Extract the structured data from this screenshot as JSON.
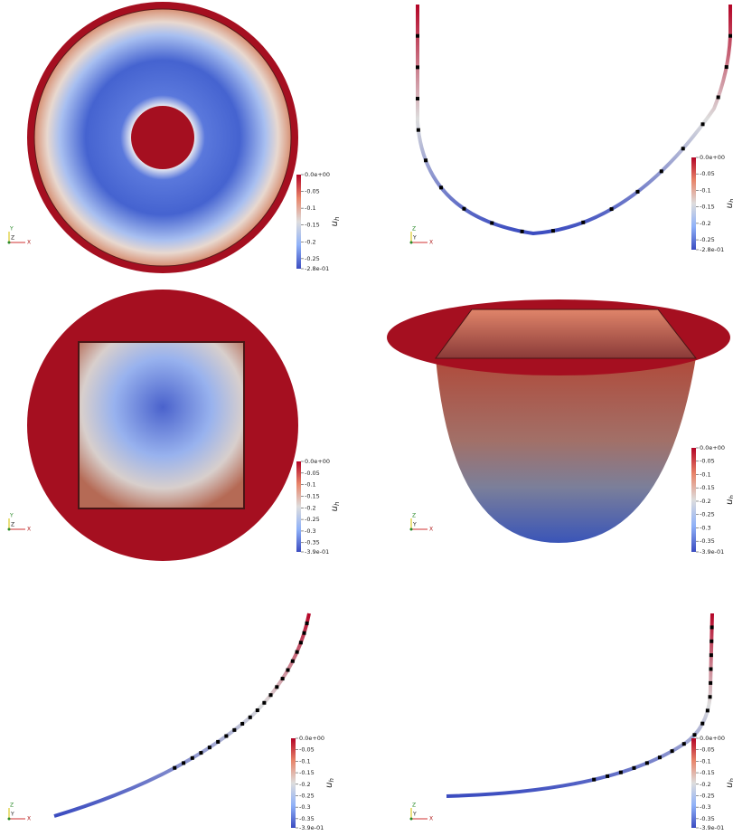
{
  "panels": [
    {
      "colorbar": {
        "labels": [
          "0.0e+00",
          "-0.05",
          "-0.1",
          "-0.15",
          "-0.2",
          "-0.25",
          "-2.8e-01"
        ],
        "title": "u",
        "subscript": "h"
      },
      "axes": [
        "Y",
        "Z",
        "X"
      ]
    },
    {
      "colorbar": {
        "labels": [
          "0.0e+00",
          "-0.05",
          "-0.1",
          "-0.15",
          "-0.2",
          "-0.25",
          "-2.8e-01"
        ],
        "title": "u",
        "subscript": "h"
      },
      "axes": [
        "Z",
        "Y",
        "X"
      ]
    },
    {
      "colorbar": {
        "labels": [
          "0.0e+00",
          "-0.05",
          "-0.1",
          "-0.15",
          "-0.2",
          "-0.25",
          "-0.3",
          "-0.35",
          "-3.9e-01"
        ],
        "title": "u",
        "subscript": "h"
      },
      "axes": [
        "Y",
        "Z",
        "X"
      ]
    },
    {
      "colorbar": {
        "labels": [
          "0.0e+00",
          "-0.05",
          "-0.1",
          "-0.15",
          "-0.2",
          "-0.25",
          "-0.3",
          "-0.35",
          "-3.9e-01"
        ],
        "title": "u",
        "subscript": "h"
      },
      "axes": [
        "Z",
        "Y",
        "X"
      ]
    },
    {
      "colorbar": {
        "labels": [
          "0.0e+00",
          "-0.05",
          "-0.1",
          "-0.15",
          "-0.2",
          "-0.25",
          "-0.3",
          "-0.35",
          "-3.9e-01"
        ],
        "title": "u",
        "subscript": "h"
      },
      "axes": [
        "Z",
        "Y",
        "X"
      ]
    },
    {
      "colorbar": {
        "labels": [
          "0.0e+00",
          "-0.05",
          "-0.1",
          "-0.15",
          "-0.2",
          "-0.25",
          "-0.3",
          "-0.35",
          "-3.9e-01"
        ],
        "title": "u",
        "subscript": "h"
      },
      "axes": [
        "Z",
        "Y",
        "X"
      ]
    }
  ]
}
